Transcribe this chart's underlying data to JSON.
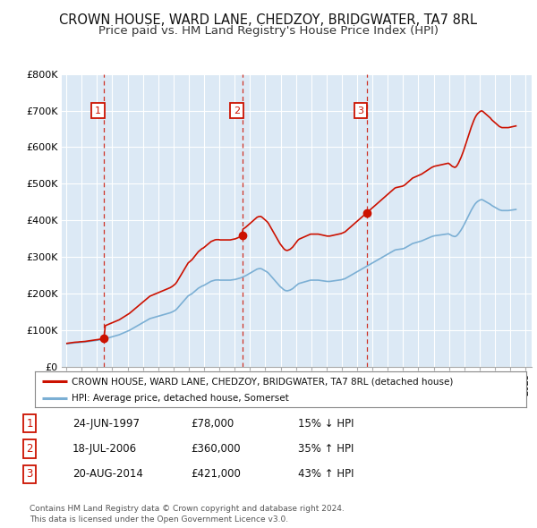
{
  "title": "CROWN HOUSE, WARD LANE, CHEDZOY, BRIDGWATER, TA7 8RL",
  "subtitle": "Price paid vs. HM Land Registry's House Price Index (HPI)",
  "title_fontsize": 10.5,
  "subtitle_fontsize": 9.5,
  "hpi_color": "#7bafd4",
  "price_color": "#cc1100",
  "background_color": "#ffffff",
  "chart_bg_color": "#dce9f5",
  "grid_color": "#ffffff",
  "ylim": [
    0,
    800000
  ],
  "yticks": [
    0,
    100000,
    200000,
    300000,
    400000,
    500000,
    600000,
    700000,
    800000
  ],
  "ytick_labels": [
    "£0",
    "£100K",
    "£200K",
    "£300K",
    "£400K",
    "£500K",
    "£600K",
    "£700K",
    "£800K"
  ],
  "sale_dates_decimal": [
    1997.47,
    2006.54,
    2014.63
  ],
  "sale_prices": [
    78000,
    360000,
    421000
  ],
  "sale_labels": [
    "1",
    "2",
    "3"
  ],
  "legend_line1": "CROWN HOUSE, WARD LANE, CHEDZOY, BRIDGWATER, TA7 8RL (detached house)",
  "legend_line2": "HPI: Average price, detached house, Somerset",
  "table_rows": [
    [
      "1",
      "24-JUN-1997",
      "£78,000",
      "15% ↓ HPI"
    ],
    [
      "2",
      "18-JUL-2006",
      "£360,000",
      "35% ↑ HPI"
    ],
    [
      "3",
      "20-AUG-2014",
      "£421,000",
      "43% ↑ HPI"
    ]
  ],
  "footnote": "Contains HM Land Registry data © Crown copyright and database right 2024.\nThis data is licensed under the Open Government Licence v3.0.",
  "hpi_monthly_years": [
    1995.042,
    1995.125,
    1995.208,
    1995.292,
    1995.375,
    1995.458,
    1995.542,
    1995.625,
    1995.708,
    1995.792,
    1995.875,
    1995.958,
    1996.042,
    1996.125,
    1996.208,
    1996.292,
    1996.375,
    1996.458,
    1996.542,
    1996.625,
    1996.708,
    1996.792,
    1996.875,
    1996.958,
    1997.042,
    1997.125,
    1997.208,
    1997.292,
    1997.375,
    1997.458,
    1997.542,
    1997.625,
    1997.708,
    1997.792,
    1997.875,
    1997.958,
    1998.042,
    1998.125,
    1998.208,
    1998.292,
    1998.375,
    1998.458,
    1998.542,
    1998.625,
    1998.708,
    1998.792,
    1998.875,
    1998.958,
    1999.042,
    1999.125,
    1999.208,
    1999.292,
    1999.375,
    1999.458,
    1999.542,
    1999.625,
    1999.708,
    1999.792,
    1999.875,
    1999.958,
    2000.042,
    2000.125,
    2000.208,
    2000.292,
    2000.375,
    2000.458,
    2000.542,
    2000.625,
    2000.708,
    2000.792,
    2000.875,
    2000.958,
    2001.042,
    2001.125,
    2001.208,
    2001.292,
    2001.375,
    2001.458,
    2001.542,
    2001.625,
    2001.708,
    2001.792,
    2001.875,
    2001.958,
    2002.042,
    2002.125,
    2002.208,
    2002.292,
    2002.375,
    2002.458,
    2002.542,
    2002.625,
    2002.708,
    2002.792,
    2002.875,
    2002.958,
    2003.042,
    2003.125,
    2003.208,
    2003.292,
    2003.375,
    2003.458,
    2003.542,
    2003.625,
    2003.708,
    2003.792,
    2003.875,
    2003.958,
    2004.042,
    2004.125,
    2004.208,
    2004.292,
    2004.375,
    2004.458,
    2004.542,
    2004.625,
    2004.708,
    2004.792,
    2004.875,
    2004.958,
    2005.042,
    2005.125,
    2005.208,
    2005.292,
    2005.375,
    2005.458,
    2005.542,
    2005.625,
    2005.708,
    2005.792,
    2005.875,
    2005.958,
    2006.042,
    2006.125,
    2006.208,
    2006.292,
    2006.375,
    2006.458,
    2006.542,
    2006.625,
    2006.708,
    2006.792,
    2006.875,
    2006.958,
    2007.042,
    2007.125,
    2007.208,
    2007.292,
    2007.375,
    2007.458,
    2007.542,
    2007.625,
    2007.708,
    2007.792,
    2007.875,
    2007.958,
    2008.042,
    2008.125,
    2008.208,
    2008.292,
    2008.375,
    2008.458,
    2008.542,
    2008.625,
    2008.708,
    2008.792,
    2008.875,
    2008.958,
    2009.042,
    2009.125,
    2009.208,
    2009.292,
    2009.375,
    2009.458,
    2009.542,
    2009.625,
    2009.708,
    2009.792,
    2009.875,
    2009.958,
    2010.042,
    2010.125,
    2010.208,
    2010.292,
    2010.375,
    2010.458,
    2010.542,
    2010.625,
    2010.708,
    2010.792,
    2010.875,
    2010.958,
    2011.042,
    2011.125,
    2011.208,
    2011.292,
    2011.375,
    2011.458,
    2011.542,
    2011.625,
    2011.708,
    2011.792,
    2011.875,
    2011.958,
    2012.042,
    2012.125,
    2012.208,
    2012.292,
    2012.375,
    2012.458,
    2012.542,
    2012.625,
    2012.708,
    2012.792,
    2012.875,
    2012.958,
    2013.042,
    2013.125,
    2013.208,
    2013.292,
    2013.375,
    2013.458,
    2013.542,
    2013.625,
    2013.708,
    2013.792,
    2013.875,
    2013.958,
    2014.042,
    2014.125,
    2014.208,
    2014.292,
    2014.375,
    2014.458,
    2014.542,
    2014.625,
    2014.708,
    2014.792,
    2014.875,
    2014.958,
    2015.042,
    2015.125,
    2015.208,
    2015.292,
    2015.375,
    2015.458,
    2015.542,
    2015.625,
    2015.708,
    2015.792,
    2015.875,
    2015.958,
    2016.042,
    2016.125,
    2016.208,
    2016.292,
    2016.375,
    2016.458,
    2016.542,
    2016.625,
    2016.708,
    2016.792,
    2016.875,
    2016.958,
    2017.042,
    2017.125,
    2017.208,
    2017.292,
    2017.375,
    2017.458,
    2017.542,
    2017.625,
    2017.708,
    2017.792,
    2017.875,
    2017.958,
    2018.042,
    2018.125,
    2018.208,
    2018.292,
    2018.375,
    2018.458,
    2018.542,
    2018.625,
    2018.708,
    2018.792,
    2018.875,
    2018.958,
    2019.042,
    2019.125,
    2019.208,
    2019.292,
    2019.375,
    2019.458,
    2019.542,
    2019.625,
    2019.708,
    2019.792,
    2019.875,
    2019.958,
    2020.042,
    2020.125,
    2020.208,
    2020.292,
    2020.375,
    2020.458,
    2020.542,
    2020.625,
    2020.708,
    2020.792,
    2020.875,
    2020.958,
    2021.042,
    2021.125,
    2021.208,
    2021.292,
    2021.375,
    2021.458,
    2021.542,
    2021.625,
    2021.708,
    2021.792,
    2021.875,
    2021.958,
    2022.042,
    2022.125,
    2022.208,
    2022.292,
    2022.375,
    2022.458,
    2022.542,
    2022.625,
    2022.708,
    2022.792,
    2022.875,
    2022.958,
    2023.042,
    2023.125,
    2023.208,
    2023.292,
    2023.375,
    2023.458,
    2023.542,
    2023.625,
    2023.708,
    2023.792,
    2023.875,
    2023.958,
    2024.042,
    2024.125,
    2024.208,
    2024.292,
    2024.375
  ],
  "hpi_monthly_values": [
    63000,
    63500,
    64000,
    64500,
    65000,
    65500,
    65800,
    66000,
    66200,
    66500,
    67000,
    67200,
    67500,
    67800,
    68000,
    68500,
    69000,
    69500,
    70000,
    70500,
    71000,
    71500,
    72000,
    72500,
    73000,
    73500,
    74000,
    74500,
    75000,
    76000,
    77000,
    78000,
    79000,
    80000,
    81000,
    82000,
    83000,
    84000,
    85000,
    86000,
    87000,
    88000,
    89500,
    91000,
    92500,
    94000,
    95500,
    97000,
    98500,
    100000,
    102000,
    104000,
    106000,
    108000,
    110000,
    112000,
    114000,
    116000,
    118000,
    120000,
    122000,
    124000,
    126000,
    128000,
    130000,
    132000,
    133000,
    134000,
    135000,
    136000,
    137000,
    138000,
    139000,
    140000,
    141000,
    142000,
    143000,
    144000,
    145000,
    146000,
    147000,
    148000,
    149500,
    151000,
    153000,
    155000,
    158000,
    162000,
    166000,
    170000,
    174000,
    178000,
    182000,
    186000,
    190000,
    194000,
    196000,
    198000,
    200000,
    203000,
    206000,
    209000,
    212000,
    215000,
    217000,
    219000,
    221000,
    222000,
    224000,
    226000,
    228000,
    230000,
    232000,
    234000,
    235000,
    236000,
    237000,
    237500,
    237500,
    237500,
    237000,
    237000,
    237000,
    237000,
    237000,
    237000,
    237000,
    237000,
    237000,
    237500,
    238000,
    238500,
    239000,
    240000,
    241000,
    242000,
    243000,
    244500,
    246000,
    247500,
    249000,
    251000,
    253000,
    255000,
    257000,
    259000,
    261000,
    263000,
    265000,
    267000,
    268000,
    268500,
    268500,
    267000,
    265000,
    263000,
    261000,
    259000,
    256000,
    252000,
    248000,
    244000,
    240000,
    236000,
    232000,
    228000,
    224000,
    220000,
    217000,
    214000,
    211000,
    209000,
    208000,
    208000,
    209000,
    210000,
    212000,
    214000,
    217000,
    220000,
    223000,
    226000,
    228000,
    229000,
    230000,
    231000,
    232000,
    233000,
    234000,
    235000,
    236000,
    237000,
    237000,
    237000,
    237000,
    237000,
    237000,
    237000,
    236500,
    236000,
    235500,
    235000,
    234500,
    234000,
    233500,
    233500,
    233500,
    234000,
    234500,
    235000,
    235500,
    236000,
    236500,
    237000,
    237500,
    238000,
    239000,
    240000,
    241000,
    243000,
    245000,
    247000,
    249000,
    251000,
    253000,
    255000,
    257000,
    259000,
    261000,
    263000,
    265000,
    267000,
    269000,
    271000,
    273000,
    275000,
    277000,
    279000,
    281000,
    283000,
    285000,
    287000,
    289000,
    291000,
    293000,
    295000,
    297000,
    299000,
    301000,
    303000,
    305000,
    307000,
    309000,
    311000,
    313000,
    315000,
    317000,
    319000,
    320000,
    320500,
    321000,
    321500,
    322000,
    322500,
    323500,
    325000,
    327000,
    329000,
    331000,
    333000,
    335000,
    337000,
    338000,
    339000,
    340000,
    341000,
    342000,
    343000,
    344000,
    345500,
    347000,
    348500,
    350000,
    351500,
    353000,
    354500,
    356000,
    357000,
    358000,
    358500,
    359000,
    359500,
    360000,
    360500,
    361000,
    361500,
    362000,
    362500,
    363000,
    363500,
    362000,
    360000,
    358000,
    357000,
    356000,
    357000,
    360000,
    364000,
    369000,
    374000,
    380000,
    386000,
    393000,
    400000,
    407000,
    414000,
    421000,
    428000,
    434000,
    440000,
    445000,
    449000,
    452000,
    454000,
    456000,
    457000,
    456000,
    454000,
    452000,
    450000,
    448000,
    446000,
    444000,
    441000,
    439000,
    437000,
    435000,
    433000,
    431000,
    429000,
    428000,
    427000,
    427000,
    427000,
    427000,
    427000,
    427000,
    427500,
    428000,
    428500,
    429000,
    429500,
    430000
  ]
}
